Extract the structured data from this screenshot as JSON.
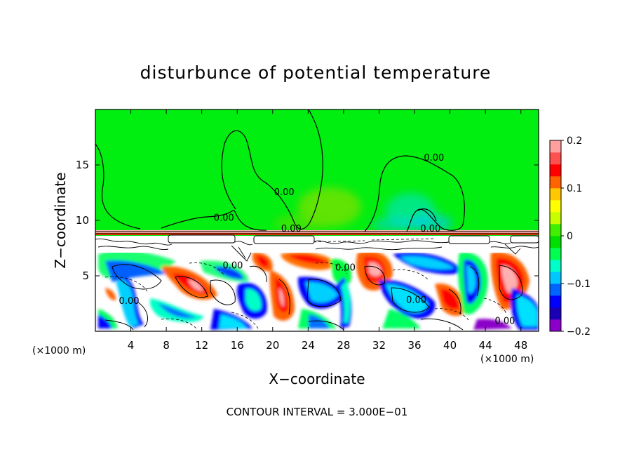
{
  "chart_data": {
    "type": "heatmap",
    "title": "disturbunce of potential temperature",
    "xlabel": "X−coordinate",
    "ylabel": "Z−coordinate",
    "x_unit_left": "(×1000 m)",
    "x_unit_right": "(×1000 m)",
    "footer": "CONTOUR INTERVAL = 3.000E−01",
    "xlim": [
      0,
      50
    ],
    "ylim": [
      0,
      20
    ],
    "x_ticks": [
      4,
      8,
      12,
      16,
      20,
      24,
      28,
      32,
      36,
      40,
      44,
      48
    ],
    "y_ticks": [
      5,
      10,
      15
    ],
    "colorbar": {
      "min": -0.2,
      "max": 0.2,
      "tick_values": [
        0.2,
        0.1,
        0,
        -0.1,
        -0.2
      ],
      "tick_labels": [
        "0.2",
        "0.1",
        "0",
        "−0.1",
        "−0.2"
      ],
      "colors": [
        "#8b00c8",
        "#1a00b4",
        "#0000ff",
        "#0064ff",
        "#00c8ff",
        "#00ffc8",
        "#00ff50",
        "#00e000",
        "#40f000",
        "#c8ff00",
        "#ffff00",
        "#ffc800",
        "#ff6400",
        "#ff0000",
        "#ff5050",
        "#ffa0a0"
      ]
    },
    "contour_labels": [
      {
        "text": "0.00",
        "x": 14.5,
        "z": 10.1
      },
      {
        "text": "0.00",
        "x": 21.3,
        "z": 12.4
      },
      {
        "text": "0.00",
        "x": 38.2,
        "z": 15.5
      },
      {
        "text": "0.00",
        "x": 22.1,
        "z": 9.1
      },
      {
        "text": "0.00",
        "x": 37.8,
        "z": 9.1
      },
      {
        "text": "0.00",
        "x": 15.5,
        "z": 5.8
      },
      {
        "text": "0.00",
        "x": 28.2,
        "z": 5.6
      },
      {
        "text": "0.00",
        "x": 3.8,
        "z": 2.6
      },
      {
        "text": "0.00",
        "x": 36.2,
        "z": 2.7
      },
      {
        "text": "0.00",
        "x": 46.2,
        "z": 0.8
      }
    ]
  }
}
